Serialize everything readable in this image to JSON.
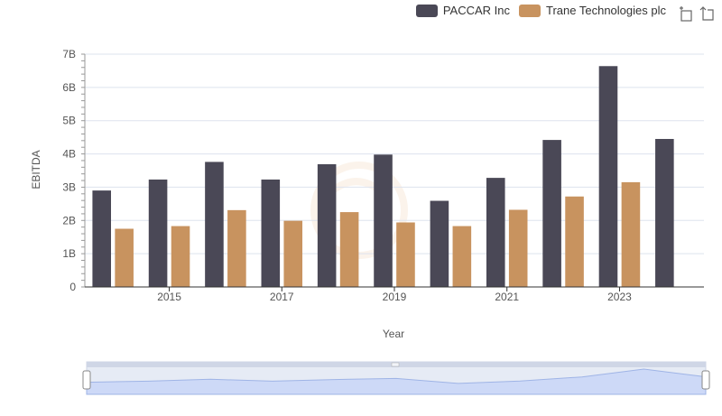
{
  "legend": {
    "items": [
      {
        "label": "PACCAR Inc",
        "color": "#4a4856"
      },
      {
        "label": "Trane Technologies plc",
        "color": "#c8935f"
      }
    ]
  },
  "toolbar": {
    "icons": [
      "zoom-select-icon",
      "zoom-reset-icon"
    ]
  },
  "chart_data": {
    "type": "bar",
    "title": "",
    "xlabel": "Year",
    "ylabel": "EBITDA",
    "ylim": [
      0,
      7000000000
    ],
    "y_ticks": [
      {
        "value": 0,
        "label": "0"
      },
      {
        "value": 1000000000,
        "label": "1B"
      },
      {
        "value": 2000000000,
        "label": "2B"
      },
      {
        "value": 3000000000,
        "label": "3B"
      },
      {
        "value": 4000000000,
        "label": "4B"
      },
      {
        "value": 5000000000,
        "label": "5B"
      },
      {
        "value": 6000000000,
        "label": "6B"
      },
      {
        "value": 7000000000,
        "label": "7B"
      }
    ],
    "x_tick_labels": [
      "2015",
      "2017",
      "2019",
      "2021",
      "2023"
    ],
    "categories": [
      "2014",
      "2015",
      "2016",
      "2017",
      "2018",
      "2019",
      "2020",
      "2021",
      "2022",
      "2023",
      "2024"
    ],
    "series": [
      {
        "name": "PACCAR Inc",
        "color": "#4a4856",
        "values": [
          2900000000,
          3230000000,
          3760000000,
          3230000000,
          3690000000,
          3980000000,
          2590000000,
          3280000000,
          4420000000,
          6640000000,
          4450000000
        ]
      },
      {
        "name": "Trane Technologies plc",
        "color": "#c8935f",
        "values": [
          1750000000,
          1830000000,
          2310000000,
          1990000000,
          2250000000,
          1940000000,
          1830000000,
          2320000000,
          2720000000,
          3150000000,
          null
        ]
      }
    ],
    "grid": true,
    "legend_position": "top-right",
    "navigator": true
  }
}
